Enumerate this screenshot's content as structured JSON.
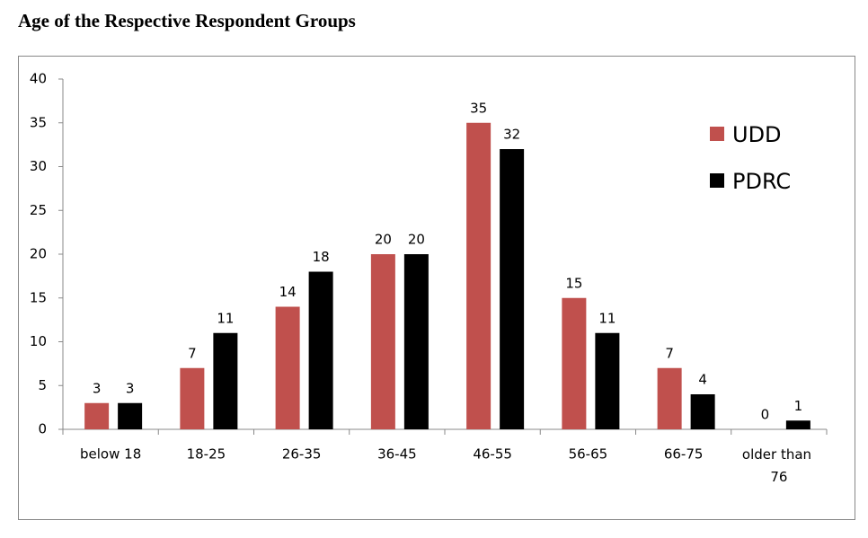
{
  "chart_data": {
    "type": "bar",
    "title": "Age of the Respective Respondent Groups",
    "categories": [
      "below 18",
      "18-25",
      "26-35",
      "36-45",
      "46-55",
      "56-65",
      "66-75",
      "older than 76"
    ],
    "series": [
      {
        "name": "UDD",
        "color": "#c0504d",
        "values": [
          3,
          7,
          14,
          20,
          35,
          15,
          7,
          0
        ]
      },
      {
        "name": "PDRC",
        "color": "#000000",
        "values": [
          3,
          11,
          18,
          20,
          32,
          11,
          4,
          1
        ]
      }
    ],
    "ylim": [
      0,
      40
    ],
    "yticks": [
      0,
      5,
      10,
      15,
      20,
      25,
      30,
      35,
      40
    ],
    "legend": "upper right"
  }
}
